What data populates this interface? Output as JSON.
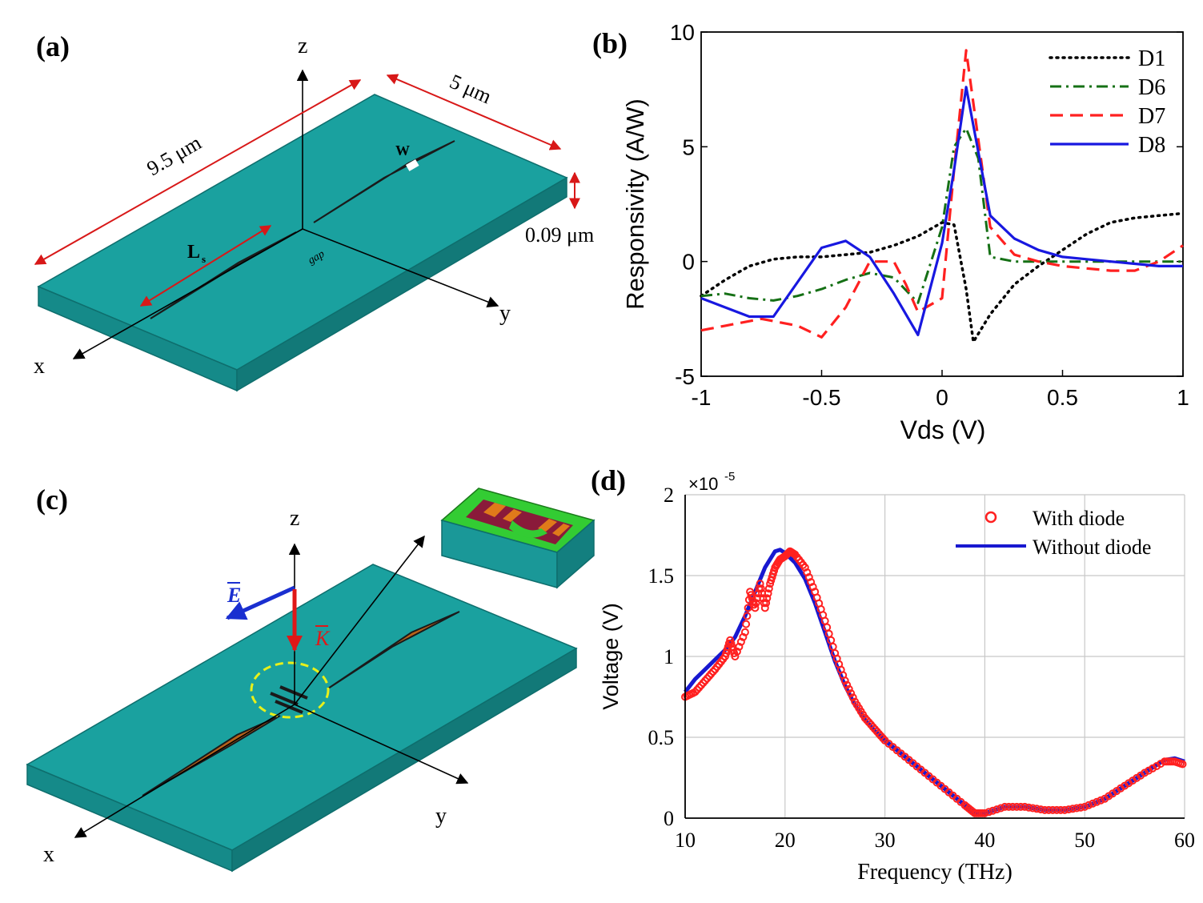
{
  "panels": {
    "a": {
      "label": "(a)",
      "axis_x": "x",
      "axis_y": "y",
      "axis_z": "z",
      "dim_length": "9.5 μm",
      "dim_width": "5 μm",
      "dim_thickness": "0.09 μm",
      "label_ls": "L",
      "label_ls_sub": "s",
      "label_gap": "gap",
      "label_w": "W"
    },
    "b": {
      "label": "(b)"
    },
    "c": {
      "label": "(c)",
      "axis_x": "x",
      "axis_y": "y",
      "axis_z": "z",
      "label_E": "E",
      "label_K": "K"
    },
    "d": {
      "label": "(d)",
      "exponent_prefix": "×10",
      "exponent_power": "-5"
    }
  },
  "colors": {
    "substrate_top": "#1aa19f",
    "substrate_side": "#168c8b",
    "antenna": "#b8621a",
    "dim_arrow": "#d81818",
    "d1": "#000000",
    "d6": "#157015",
    "d7": "#ff2020",
    "d8": "#1818e0",
    "with_diode": "#ff2020",
    "without_diode": "#1818d0"
  },
  "chart_data": [
    {
      "id": "b",
      "type": "line",
      "xlabel": "Vds (V)",
      "ylabel": "Responsivity (A/W)",
      "xlim": [
        -1,
        1
      ],
      "ylim": [
        -5,
        10
      ],
      "xticks": [
        -1,
        -0.5,
        0,
        0.5,
        1
      ],
      "xtick_labels": [
        "-1",
        "-0.5",
        "0",
        "0.5",
        "1"
      ],
      "yticks": [
        -5,
        0,
        5,
        10
      ],
      "ytick_labels": [
        "-5",
        "0",
        "5",
        "10"
      ],
      "legend": "top-right",
      "series": [
        {
          "name": "D1",
          "style": "dotted",
          "x": [
            -1,
            -0.9,
            -0.8,
            -0.7,
            -0.6,
            -0.5,
            -0.4,
            -0.3,
            -0.2,
            -0.1,
            0,
            0.05,
            0.1,
            0.13,
            0.2,
            0.3,
            0.4,
            0.5,
            0.6,
            0.7,
            0.8,
            0.9,
            1
          ],
          "y": [
            -1.5,
            -0.8,
            -0.2,
            0.1,
            0.2,
            0.2,
            0.3,
            0.4,
            0.7,
            1.1,
            1.7,
            1.6,
            -1.2,
            -3.5,
            -2.3,
            -1.0,
            -0.2,
            0.5,
            1.2,
            1.7,
            1.9,
            2.0,
            2.1
          ]
        },
        {
          "name": "D6",
          "style": "dashdot",
          "x": [
            -1,
            -0.9,
            -0.8,
            -0.7,
            -0.6,
            -0.5,
            -0.4,
            -0.3,
            -0.2,
            -0.1,
            0,
            0.05,
            0.1,
            0.15,
            0.2,
            0.3,
            0.4,
            0.5,
            0.6,
            0.7,
            0.8,
            0.9,
            1
          ],
          "y": [
            -1.5,
            -1.4,
            -1.6,
            -1.7,
            -1.5,
            -1.2,
            -0.8,
            -0.5,
            -0.7,
            -1.8,
            1.5,
            5.0,
            5.8,
            4.5,
            0.2,
            0.0,
            0.0,
            0.0,
            0.0,
            0.0,
            0.0,
            0.0,
            0.0
          ]
        },
        {
          "name": "D7",
          "style": "dashed",
          "x": [
            -1,
            -0.9,
            -0.8,
            -0.75,
            -0.6,
            -0.5,
            -0.4,
            -0.3,
            -0.2,
            -0.15,
            -0.1,
            0,
            0.05,
            0.1,
            0.2,
            0.3,
            0.4,
            0.5,
            0.6,
            0.7,
            0.8,
            0.9,
            1
          ],
          "y": [
            -3.0,
            -2.8,
            -2.6,
            -2.5,
            -2.8,
            -3.3,
            -2.0,
            0.0,
            0.0,
            -1.0,
            -2.2,
            -1.6,
            4.0,
            9.2,
            1.5,
            0.3,
            0.0,
            -0.2,
            -0.3,
            -0.4,
            -0.4,
            0.0,
            0.7
          ]
        },
        {
          "name": "D8",
          "style": "solid",
          "x": [
            -1,
            -0.9,
            -0.8,
            -0.7,
            -0.6,
            -0.5,
            -0.4,
            -0.3,
            -0.2,
            -0.1,
            0,
            0.05,
            0.1,
            0.2,
            0.3,
            0.4,
            0.5,
            0.6,
            0.7,
            0.8,
            0.9,
            1
          ],
          "y": [
            -1.6,
            -2.0,
            -2.4,
            -2.4,
            -0.9,
            0.6,
            0.9,
            0.2,
            -1.4,
            -3.2,
            0.8,
            4.0,
            7.6,
            2.0,
            1.0,
            0.5,
            0.2,
            0.1,
            0.0,
            -0.1,
            -0.2,
            -0.2
          ]
        }
      ]
    },
    {
      "id": "d",
      "type": "line",
      "xlabel": "Frequency (THz)",
      "ylabel": "Voltage (V)",
      "xlim": [
        10,
        60
      ],
      "ylim": [
        0,
        2
      ],
      "scale_note": "×10-5",
      "xticks": [
        10,
        20,
        30,
        40,
        50,
        60
      ],
      "xtick_labels": [
        "10",
        "20",
        "30",
        "40",
        "50",
        "60"
      ],
      "yticks": [
        0,
        0.5,
        1,
        1.5,
        2
      ],
      "ytick_labels": [
        "0",
        "0.5",
        "1",
        "1.5",
        "2"
      ],
      "grid": true,
      "legend": "top-right",
      "series": [
        {
          "name": "With diode",
          "style": "circle-markers",
          "x": [
            10,
            11,
            12,
            13,
            14,
            14.5,
            15,
            16,
            16.5,
            17,
            17.5,
            18,
            18.5,
            19,
            19.5,
            20,
            20.5,
            21,
            22,
            23,
            24,
            25,
            26,
            27,
            28,
            29,
            30,
            32,
            34,
            36,
            38,
            39,
            40,
            42,
            44,
            46,
            48,
            50,
            52,
            54,
            56,
            58,
            59,
            60
          ],
          "y": [
            0.75,
            0.78,
            0.85,
            0.92,
            1.0,
            1.1,
            1.0,
            1.15,
            1.4,
            1.3,
            1.45,
            1.3,
            1.45,
            1.55,
            1.6,
            1.62,
            1.65,
            1.63,
            1.55,
            1.4,
            1.22,
            1.02,
            0.85,
            0.72,
            0.62,
            0.55,
            0.48,
            0.38,
            0.28,
            0.18,
            0.08,
            0.03,
            0.03,
            0.07,
            0.07,
            0.05,
            0.05,
            0.07,
            0.12,
            0.2,
            0.28,
            0.35,
            0.35,
            0.33
          ]
        },
        {
          "name": "Without diode",
          "style": "solid",
          "x": [
            10,
            11,
            12,
            13,
            14,
            15,
            16,
            17,
            18,
            19,
            19.5,
            20,
            21,
            22,
            23,
            24,
            25,
            26,
            27,
            28,
            29,
            30,
            32,
            34,
            36,
            38,
            39,
            40,
            42,
            44,
            46,
            48,
            50,
            52,
            54,
            56,
            58,
            59,
            60
          ],
          "y": [
            0.78,
            0.86,
            0.92,
            0.98,
            1.04,
            1.12,
            1.25,
            1.4,
            1.55,
            1.65,
            1.66,
            1.64,
            1.58,
            1.48,
            1.33,
            1.15,
            0.97,
            0.82,
            0.7,
            0.61,
            0.54,
            0.48,
            0.38,
            0.28,
            0.18,
            0.08,
            0.03,
            0.03,
            0.07,
            0.07,
            0.05,
            0.05,
            0.07,
            0.12,
            0.2,
            0.28,
            0.36,
            0.37,
            0.35
          ]
        }
      ]
    }
  ]
}
